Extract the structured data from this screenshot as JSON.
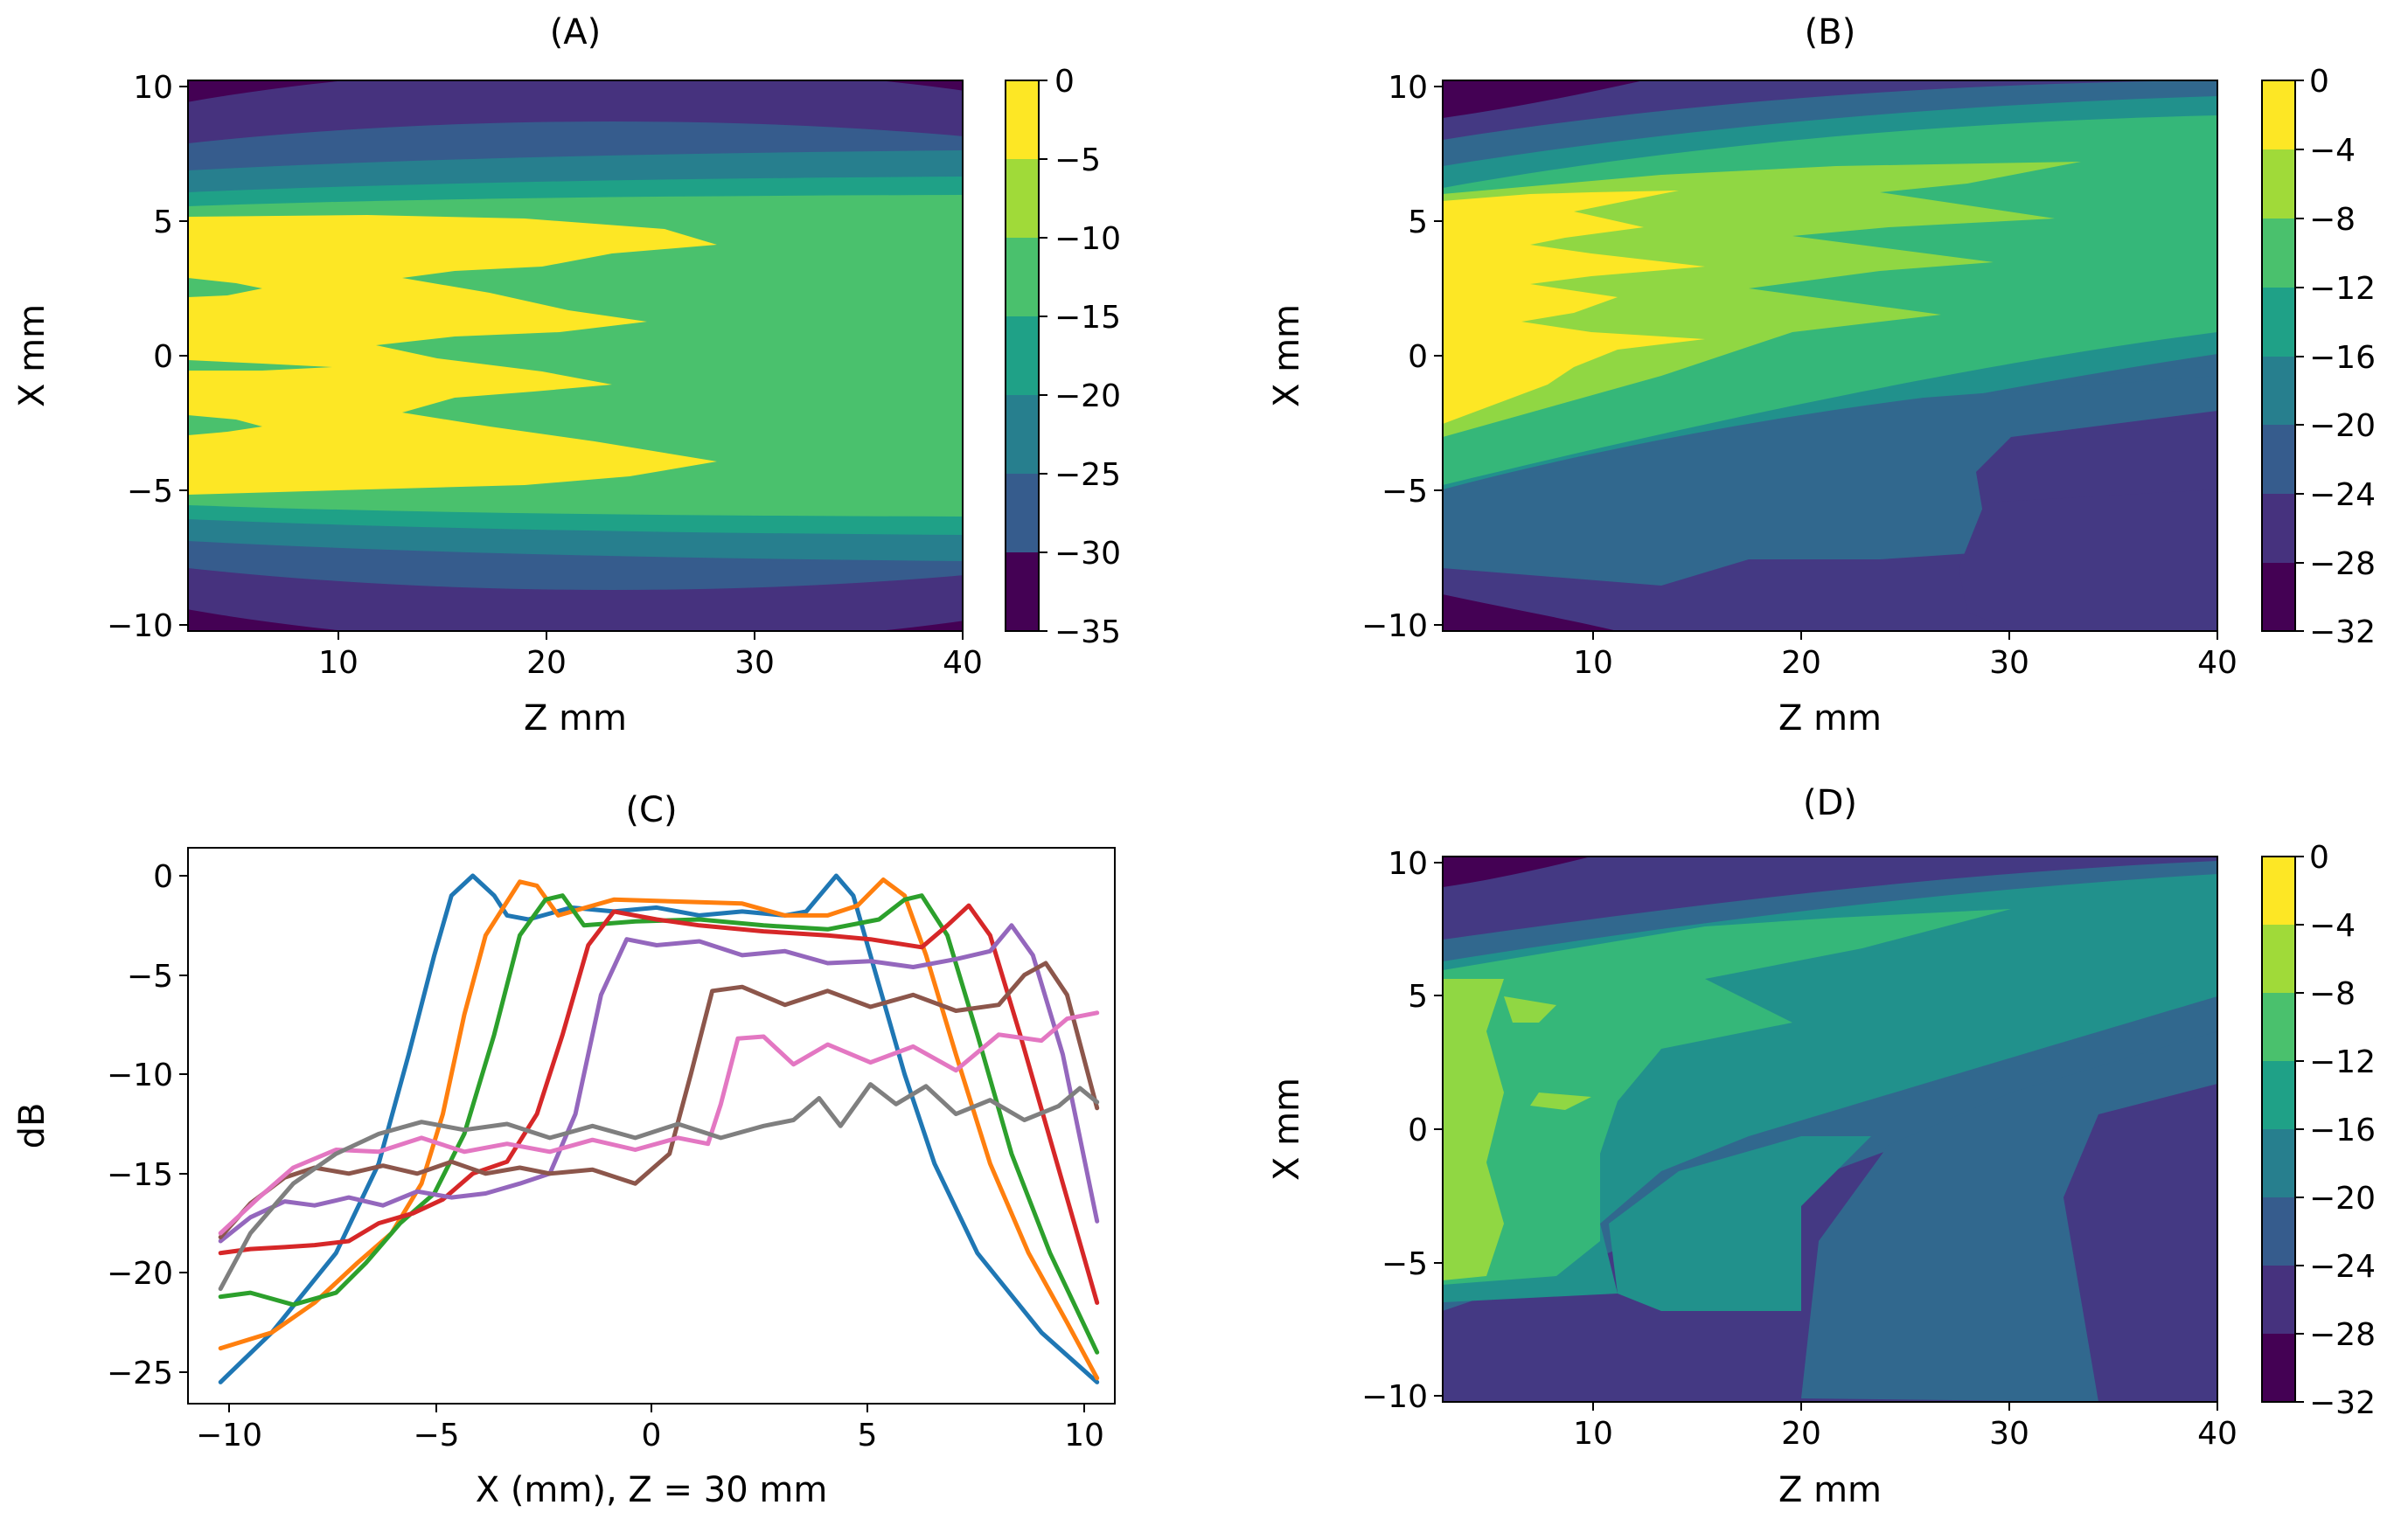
{
  "chart_data": [
    {
      "id": "A",
      "type": "heatmap",
      "title": "(A)",
      "xlabel": "Z mm",
      "ylabel": "X mm",
      "xlim": [
        2.5,
        40
      ],
      "ylim": [
        -10.2,
        10.2
      ],
      "xticks": [
        "10",
        "20",
        "30",
        "40"
      ],
      "yticks": [
        "10",
        "5",
        "0",
        "−5",
        "−10"
      ],
      "colorbar": {
        "ticks": [
          "0",
          "−5",
          "−10",
          "−15",
          "−20",
          "−25",
          "−30",
          "−35"
        ],
        "range": [
          -35,
          0
        ],
        "levels": [
          -35,
          -30,
          -25,
          -20,
          -15,
          -10,
          -5,
          0
        ]
      },
      "description_levels": {
        "main_lobe_near": -5,
        "main_lobe_far": -10
      }
    },
    {
      "id": "B",
      "type": "heatmap",
      "title": "(B)",
      "xlabel": "Z mm",
      "ylabel": "X mm",
      "xlim": [
        2.5,
        40
      ],
      "ylim": [
        -10.2,
        10.2
      ],
      "xticks": [
        "10",
        "20",
        "30",
        "40"
      ],
      "yticks": [
        "10",
        "5",
        "0",
        "−5",
        "−10"
      ],
      "colorbar": {
        "ticks": [
          "0",
          "−4",
          "−8",
          "−12",
          "−16",
          "−20",
          "−24",
          "−28",
          "−32"
        ],
        "range": [
          -32,
          0
        ],
        "levels": [
          -32,
          -28,
          -24,
          -20,
          -16,
          -12,
          -8,
          -4,
          0
        ]
      }
    },
    {
      "id": "C",
      "type": "line",
      "title": "(C)",
      "xlabel": "X (mm), Z = 30 mm",
      "ylabel": "dB",
      "xlim": [
        -11.2,
        11.2
      ],
      "ylim": [
        -26.8,
        1.2
      ],
      "xticks": [
        "−10",
        "−5",
        "0",
        "5",
        "10"
      ],
      "yticks": [
        "0",
        "−5",
        "−10",
        "−15",
        "−20",
        "−25"
      ],
      "series": [
        {
          "color": "#1f77b4",
          "points": [
            [
              -10.2,
              -25.5
            ],
            [
              -9,
              -23
            ],
            [
              -7.5,
              -19
            ],
            [
              -6.5,
              -14.5
            ],
            [
              -5.8,
              -9
            ],
            [
              -5.2,
              -4
            ],
            [
              -4.8,
              -1
            ],
            [
              -4.3,
              0
            ],
            [
              -3.8,
              -1
            ],
            [
              -3.5,
              -2
            ],
            [
              -3,
              -2.2
            ],
            [
              -2,
              -1.6
            ],
            [
              -1,
              -1.8
            ],
            [
              0,
              -1.6
            ],
            [
              1,
              -2
            ],
            [
              2,
              -1.8
            ],
            [
              3,
              -2
            ],
            [
              3.5,
              -1.8
            ],
            [
              4.2,
              0
            ],
            [
              4.6,
              -1
            ],
            [
              5,
              -4
            ],
            [
              5.8,
              -10
            ],
            [
              6.5,
              -14.5
            ],
            [
              7.5,
              -19
            ],
            [
              9,
              -23
            ],
            [
              10.3,
              -25.5
            ]
          ]
        },
        {
          "color": "#ff7f0e",
          "points": [
            [
              -10.2,
              -23.8
            ],
            [
              -9,
              -23
            ],
            [
              -8,
              -21.5
            ],
            [
              -7,
              -19.5
            ],
            [
              -6.2,
              -18
            ],
            [
              -5.5,
              -15.5
            ],
            [
              -5,
              -12
            ],
            [
              -4.5,
              -7
            ],
            [
              -4,
              -3
            ],
            [
              -3.2,
              -0.3
            ],
            [
              -2.8,
              -0.5
            ],
            [
              -2.3,
              -2
            ],
            [
              -1,
              -1.2
            ],
            [
              0.5,
              -1.3
            ],
            [
              2,
              -1.4
            ],
            [
              3,
              -2
            ],
            [
              4,
              -2
            ],
            [
              4.7,
              -1.5
            ],
            [
              5.3,
              -0.2
            ],
            [
              5.8,
              -1
            ],
            [
              6.3,
              -4
            ],
            [
              7,
              -9
            ],
            [
              7.8,
              -14.5
            ],
            [
              8.7,
              -19
            ],
            [
              9.6,
              -22.5
            ],
            [
              10.3,
              -25.3
            ]
          ]
        },
        {
          "color": "#2ca02c",
          "points": [
            [
              -10.2,
              -21.2
            ],
            [
              -9.5,
              -21
            ],
            [
              -8.5,
              -21.6
            ],
            [
              -7.5,
              -21
            ],
            [
              -6.8,
              -19.5
            ],
            [
              -6,
              -17.5
            ],
            [
              -5.2,
              -16
            ],
            [
              -4.5,
              -13
            ],
            [
              -3.8,
              -8
            ],
            [
              -3.2,
              -3
            ],
            [
              -2.6,
              -1.2
            ],
            [
              -2.2,
              -1
            ],
            [
              -1.7,
              -2.5
            ],
            [
              -0.5,
              -2.3
            ],
            [
              1,
              -2.2
            ],
            [
              2.5,
              -2.5
            ],
            [
              4,
              -2.7
            ],
            [
              5.2,
              -2.2
            ],
            [
              5.8,
              -1.2
            ],
            [
              6.2,
              -1
            ],
            [
              6.8,
              -3
            ],
            [
              7.5,
              -8
            ],
            [
              8.3,
              -14
            ],
            [
              9.2,
              -19
            ],
            [
              10.3,
              -24
            ]
          ]
        },
        {
          "color": "#d62728",
          "points": [
            [
              -10.2,
              -19
            ],
            [
              -9.5,
              -18.8
            ],
            [
              -8.7,
              -18.7
            ],
            [
              -8,
              -18.6
            ],
            [
              -7.2,
              -18.4
            ],
            [
              -6.5,
              -17.5
            ],
            [
              -5.7,
              -17
            ],
            [
              -5,
              -16.3
            ],
            [
              -4.3,
              -15
            ],
            [
              -3.5,
              -14.4
            ],
            [
              -2.8,
              -12
            ],
            [
              -2.2,
              -8
            ],
            [
              -1.6,
              -3.5
            ],
            [
              -1,
              -1.8
            ],
            [
              0,
              -2.2
            ],
            [
              1,
              -2.5
            ],
            [
              2.5,
              -2.8
            ],
            [
              4,
              -3
            ],
            [
              5,
              -3.2
            ],
            [
              6.2,
              -3.6
            ],
            [
              6.8,
              -2.5
            ],
            [
              7.3,
              -1.5
            ],
            [
              7.8,
              -3
            ],
            [
              8.5,
              -8
            ],
            [
              9.3,
              -14
            ],
            [
              10.3,
              -21.5
            ]
          ]
        },
        {
          "color": "#9467bd",
          "points": [
            [
              -10.2,
              -18.4
            ],
            [
              -9.5,
              -17.2
            ],
            [
              -8.7,
              -16.4
            ],
            [
              -8,
              -16.6
            ],
            [
              -7.2,
              -16.2
            ],
            [
              -6.4,
              -16.6
            ],
            [
              -5.6,
              -15.9
            ],
            [
              -4.8,
              -16.2
            ],
            [
              -4,
              -16
            ],
            [
              -3.2,
              -15.5
            ],
            [
              -2.5,
              -15
            ],
            [
              -1.9,
              -12
            ],
            [
              -1.3,
              -6
            ],
            [
              -0.7,
              -3.2
            ],
            [
              0,
              -3.5
            ],
            [
              1,
              -3.3
            ],
            [
              2,
              -4
            ],
            [
              3,
              -3.8
            ],
            [
              4,
              -4.4
            ],
            [
              5,
              -4.3
            ],
            [
              6,
              -4.6
            ],
            [
              7,
              -4.2
            ],
            [
              7.8,
              -3.8
            ],
            [
              8.3,
              -2.5
            ],
            [
              8.8,
              -4
            ],
            [
              9.5,
              -9
            ],
            [
              10.3,
              -17.4
            ]
          ]
        },
        {
          "color": "#8c564b",
          "points": [
            [
              -10.2,
              -18.2
            ],
            [
              -9.5,
              -16.5
            ],
            [
              -8.7,
              -15.2
            ],
            [
              -8,
              -14.7
            ],
            [
              -7.2,
              -15
            ],
            [
              -6.4,
              -14.6
            ],
            [
              -5.6,
              -15
            ],
            [
              -4.8,
              -14.4
            ],
            [
              -4,
              -15
            ],
            [
              -3.2,
              -14.7
            ],
            [
              -2.5,
              -15
            ],
            [
              -1.5,
              -14.8
            ],
            [
              -0.5,
              -15.5
            ],
            [
              0.3,
              -14
            ],
            [
              0.8,
              -10
            ],
            [
              1.3,
              -5.8
            ],
            [
              2,
              -5.6
            ],
            [
              3,
              -6.5
            ],
            [
              4,
              -5.8
            ],
            [
              5,
              -6.6
            ],
            [
              6,
              -6
            ],
            [
              7,
              -6.8
            ],
            [
              8,
              -6.5
            ],
            [
              8.6,
              -5
            ],
            [
              9.1,
              -4.4
            ],
            [
              9.6,
              -6
            ],
            [
              10.3,
              -11.7
            ]
          ]
        },
        {
          "color": "#e377c2",
          "points": [
            [
              -10.2,
              -18
            ],
            [
              -9.3,
              -16.2
            ],
            [
              -8.5,
              -14.7
            ],
            [
              -7.5,
              -13.8
            ],
            [
              -6.5,
              -13.9
            ],
            [
              -5.5,
              -13.2
            ],
            [
              -4.5,
              -13.9
            ],
            [
              -3.5,
              -13.5
            ],
            [
              -2.5,
              -13.9
            ],
            [
              -1.5,
              -13.3
            ],
            [
              -0.5,
              -13.8
            ],
            [
              0.5,
              -13.2
            ],
            [
              1.2,
              -13.5
            ],
            [
              1.5,
              -11.5
            ],
            [
              1.9,
              -8.2
            ],
            [
              2.5,
              -8.1
            ],
            [
              3.2,
              -9.5
            ],
            [
              4,
              -8.5
            ],
            [
              5,
              -9.4
            ],
            [
              6,
              -8.6
            ],
            [
              7,
              -9.8
            ],
            [
              8,
              -8
            ],
            [
              9,
              -8.3
            ],
            [
              9.6,
              -7.2
            ],
            [
              10.3,
              -6.9
            ]
          ]
        },
        {
          "color": "#7f7f7f",
          "points": [
            [
              -10.2,
              -20.8
            ],
            [
              -9.5,
              -18
            ],
            [
              -8.5,
              -15.5
            ],
            [
              -7.5,
              -14
            ],
            [
              -6.5,
              -13
            ],
            [
              -5.5,
              -12.4
            ],
            [
              -4.5,
              -12.8
            ],
            [
              -3.5,
              -12.5
            ],
            [
              -2.5,
              -13.2
            ],
            [
              -1.5,
              -12.6
            ],
            [
              -0.5,
              -13.2
            ],
            [
              0.5,
              -12.5
            ],
            [
              1.5,
              -13.2
            ],
            [
              2.5,
              -12.6
            ],
            [
              3.2,
              -12.3
            ],
            [
              3.8,
              -11.2
            ],
            [
              4.3,
              -12.6
            ],
            [
              5,
              -10.5
            ],
            [
              5.6,
              -11.5
            ],
            [
              6.3,
              -10.6
            ],
            [
              7,
              -12
            ],
            [
              7.8,
              -11.3
            ],
            [
              8.6,
              -12.3
            ],
            [
              9.4,
              -11.6
            ],
            [
              9.9,
              -10.7
            ],
            [
              10.3,
              -11.4
            ]
          ]
        }
      ]
    },
    {
      "id": "D",
      "type": "heatmap",
      "title": "(D)",
      "xlabel": "Z mm",
      "ylabel": "X mm",
      "xlim": [
        2.5,
        40
      ],
      "ylim": [
        -10.2,
        10.2
      ],
      "xticks": [
        "10",
        "20",
        "30",
        "40"
      ],
      "yticks": [
        "10",
        "5",
        "0",
        "−5",
        "−10"
      ],
      "colorbar": {
        "ticks": [
          "0",
          "−4",
          "−8",
          "−12",
          "−16",
          "−20",
          "−24",
          "−28",
          "−32"
        ],
        "range": [
          -32,
          0
        ],
        "levels": [
          -32,
          -28,
          -24,
          -20,
          -16,
          -12,
          -8,
          -4,
          0
        ]
      }
    }
  ],
  "colors": {
    "palette_8": [
      "#440154",
      "#46327e",
      "#365c8d",
      "#277f8e",
      "#1fa187",
      "#4ac16d",
      "#a0da39",
      "#fde725"
    ],
    "viridis_7": [
      "#440154",
      "#443983",
      "#31688e",
      "#21918c",
      "#35b779",
      "#90d743",
      "#fde725"
    ]
  }
}
